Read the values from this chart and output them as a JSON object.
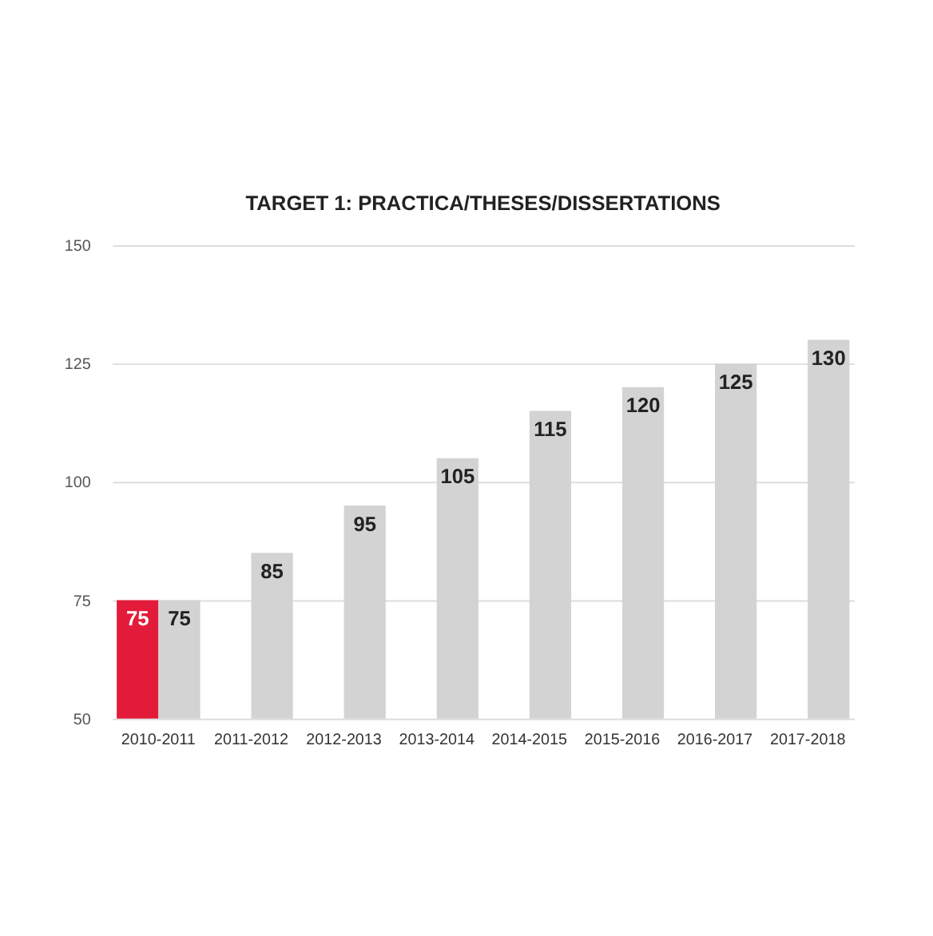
{
  "chart_data": {
    "type": "bar",
    "title": "TARGET 1:  PRACTICA/THESES/DISSERTATIONS",
    "categories": [
      "2010-2011",
      "2011-2012",
      "2012-2013",
      "2013-2014",
      "2014-2015",
      "2015-2016",
      "2016-2017",
      "2017-2018"
    ],
    "series": [
      {
        "color": "#e31b3b",
        "values": [
          75,
          null,
          null,
          null,
          null,
          null,
          null,
          null
        ]
      },
      {
        "color": "#d3d3d3",
        "values": [
          75,
          85,
          95,
          105,
          115,
          120,
          125,
          130
        ]
      }
    ],
    "ylim": [
      50,
      150
    ],
    "yticks": [
      50,
      75,
      100,
      125,
      150
    ],
    "grid": "y",
    "data_labels": true,
    "legend": false
  }
}
